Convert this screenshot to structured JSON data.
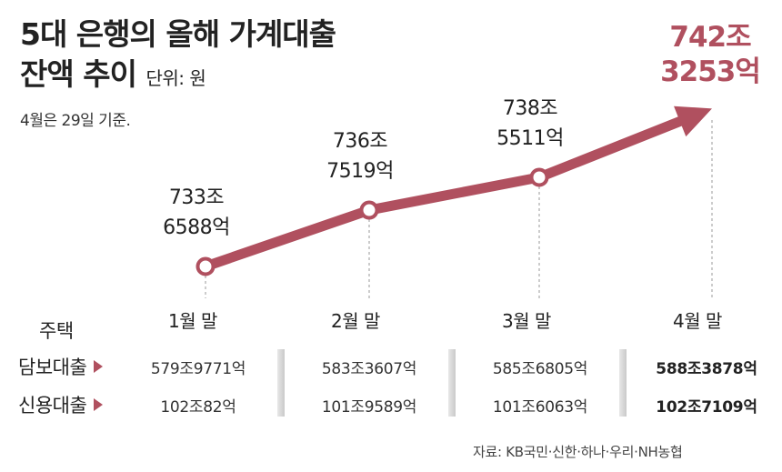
{
  "title_line1": "5대 은행의 올해 가계대출",
  "title_line2": "잔액 추이",
  "unit": "단위: 원",
  "note": "4월은 29일 기준.",
  "colors": {
    "accent": "#b0505f",
    "text": "#222222",
    "dash": "#999999"
  },
  "chart_data": {
    "type": "line",
    "categories": [
      "1월 말",
      "2월 말",
      "3월 말",
      "4월 말"
    ],
    "series": [
      {
        "values": [
          733.6588,
          736.7519,
          738.5511,
          742.3253
        ]
      }
    ],
    "labels": [
      {
        "line1": "733조",
        "line2": "6588억"
      },
      {
        "line1": "736조",
        "line2": "7519억"
      },
      {
        "line1": "738조",
        "line2": "5511억"
      },
      {
        "line1": "742조",
        "line2": "3253억"
      }
    ]
  },
  "table": {
    "group_label": "주택",
    "rows": [
      {
        "label": "담보대출",
        "values": [
          "579조9771억",
          "583조3607억",
          "585조6805억",
          "588조3878억"
        ]
      },
      {
        "label": "신용대출",
        "values": [
          "102조82억",
          "101조9589억",
          "101조6063억",
          "102조7109억"
        ]
      }
    ]
  },
  "source": "자료: KB국민·신한·하나·우리·NH농협"
}
